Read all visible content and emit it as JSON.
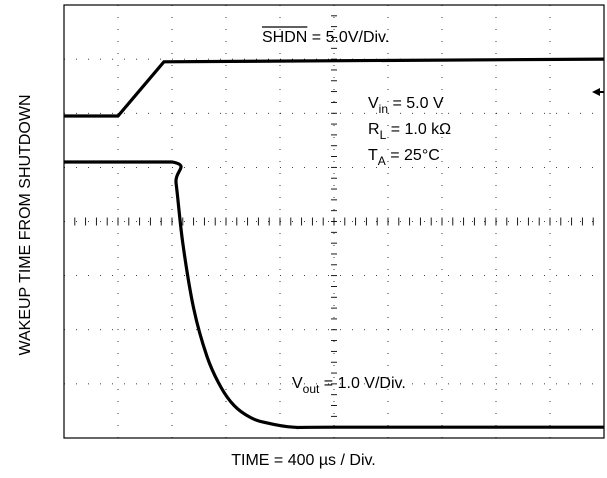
{
  "chart_data": {
    "type": "line",
    "title": "",
    "xlabel": "TIME = 400 µs / Div.",
    "ylabel": "WAKEUP TIME FROM SHUTDOWN",
    "x_divisions": 10,
    "y_divisions": 8,
    "grid": true,
    "x_unit": "µs",
    "x_per_div": 400,
    "series": [
      {
        "name": "SHDN = 5.0V/Div.",
        "label_overline": "SHDN",
        "label_rest": " = 5.0V/Div.",
        "unit": "div",
        "x": [
          0,
          400,
          740,
          740,
          4000
        ],
        "y": [
          5.95,
          5.95,
          6.95,
          6.95,
          7.0
        ]
      },
      {
        "name": "Vout = 1.0 V/Div.",
        "label_main": "V",
        "label_sub": "out",
        "label_rest": " = 1.0 V/Div.",
        "unit": "div",
        "x": [
          0,
          800,
          830,
          880,
          960,
          1060,
          1160,
          1260,
          1380,
          1500,
          1700,
          2000,
          4000
        ],
        "y": [
          5.1,
          5.1,
          4.7,
          3.6,
          2.4,
          1.5,
          0.95,
          0.6,
          0.38,
          0.28,
          0.2,
          0.2,
          0.2
        ]
      }
    ],
    "conditions": [
      {
        "main": "V",
        "sub": "in",
        "rest": " = 5.0 V"
      },
      {
        "main": "R",
        "sub": "L",
        "rest": " = 1.0 kΩ"
      },
      {
        "main": "T",
        "sub": "A",
        "rest": " = 25°C"
      }
    ]
  }
}
